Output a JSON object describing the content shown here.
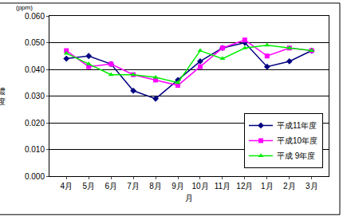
{
  "chart_data": {
    "type": "line",
    "ylabel": "濃度",
    "xlabel": "月",
    "annotations": [
      "(ppm)"
    ],
    "categories": [
      "4月",
      "5月",
      "6月",
      "7月",
      "8月",
      "9月",
      "10月",
      "11月",
      "12月",
      "1月",
      "2月",
      "3月"
    ],
    "series": [
      {
        "name": "平成11年度",
        "color": "#000080",
        "marker": "diamond",
        "values": [
          0.044,
          0.045,
          0.042,
          0.032,
          0.029,
          0.036,
          0.043,
          0.048,
          0.05,
          0.041,
          0.043,
          0.047
        ]
      },
      {
        "name": "平成10年度",
        "color": "#ff00ff",
        "marker": "square",
        "values": [
          0.047,
          0.041,
          0.042,
          0.038,
          0.036,
          0.034,
          0.041,
          0.048,
          0.051,
          0.045,
          0.048,
          0.047
        ]
      },
      {
        "name": "平成 9年度",
        "color": "#00ee00",
        "marker": "triangle-up",
        "values": [
          0.046,
          0.042,
          0.038,
          0.038,
          0.037,
          0.035,
          0.047,
          0.044,
          0.048,
          0.049,
          0.048,
          0.047
        ]
      }
    ],
    "ylim": [
      0,
      0.06
    ],
    "yticks": [
      {
        "value": 0,
        "label": "0.000"
      },
      {
        "value": 0.01,
        "label": "0.010"
      },
      {
        "value": 0.02,
        "label": "0.020"
      },
      {
        "value": 0.03,
        "label": "0.030"
      },
      {
        "value": 0.04,
        "label": "0.040"
      },
      {
        "value": 0.05,
        "label": "0.050"
      },
      {
        "value": 0.06,
        "label": "0.060"
      }
    ],
    "grid": true,
    "legend": "lower right"
  }
}
